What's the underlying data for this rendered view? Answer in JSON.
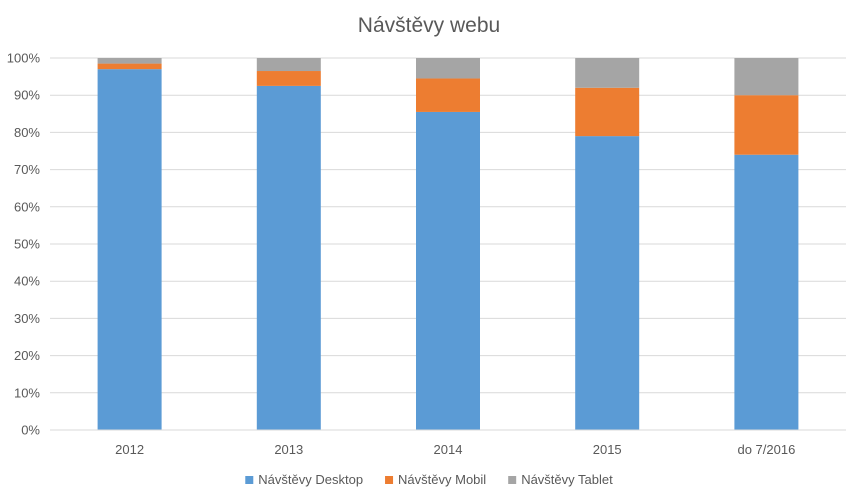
{
  "chart_data": {
    "type": "bar",
    "stacked": "percent",
    "title": "Návštěvy webu",
    "categories": [
      "2012",
      "2013",
      "2014",
      "2015",
      "do 7/2016"
    ],
    "series": [
      {
        "name": "Návštěvy Desktop",
        "color": "#5B9BD5",
        "values": [
          97,
          92.5,
          85.5,
          79,
          74
        ]
      },
      {
        "name": "Návštěvy Mobil",
        "color": "#ED7D31",
        "values": [
          1.5,
          4,
          9,
          13,
          16
        ]
      },
      {
        "name": "Návštěvy Tablet",
        "color": "#A5A5A5",
        "values": [
          1.5,
          3.5,
          5.5,
          8,
          10
        ]
      }
    ],
    "xlabel": "",
    "ylabel": "",
    "ylim": [
      0,
      100
    ],
    "yticks": [
      "0%",
      "10%",
      "20%",
      "30%",
      "40%",
      "50%",
      "60%",
      "70%",
      "80%",
      "90%",
      "100%"
    ],
    "grid": true,
    "legend_position": "bottom"
  }
}
